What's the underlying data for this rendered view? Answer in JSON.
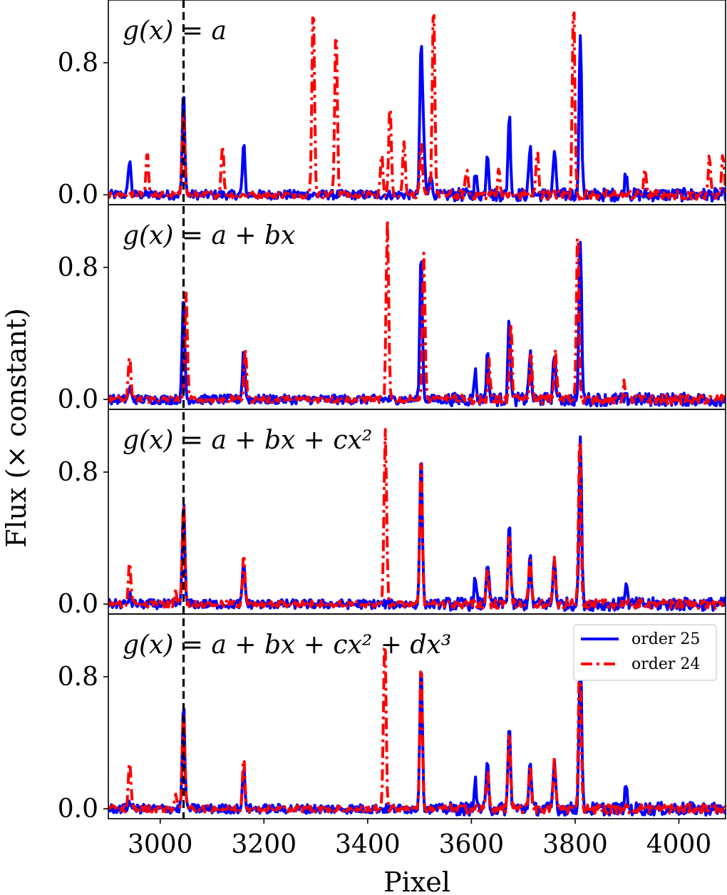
{
  "chart_data": {
    "type": "line",
    "xlabel": "Pixel",
    "ylabel": "Flux (× constant)",
    "xlim": [
      2900,
      4090
    ],
    "ylim": [
      -0.06,
      1.18
    ],
    "x_ticks": [
      "3000",
      "3200",
      "3400",
      "3600",
      "3800",
      "4000"
    ],
    "y_ticks": [
      "0.0",
      "0.8"
    ],
    "reference_line_x": 3045,
    "legend": {
      "placement": "top-right of bottom panel",
      "entries": [
        "order 25",
        "order 24"
      ]
    },
    "series_styles": {
      "order 25": {
        "color": "#0000ff",
        "style": "solid"
      },
      "order 24": {
        "color": "#ff0000",
        "style": "dash-dot"
      }
    },
    "panels": [
      {
        "formula": "g(x) = a",
        "series": [
          {
            "name": "order 25",
            "peaks": [
              [
                2941,
                0.22
              ],
              [
                3045,
                0.63
              ],
              [
                3161,
                0.3
              ],
              [
                3503,
                0.9
              ],
              [
                3508,
                0.3
              ],
              [
                3521,
                0.14
              ],
              [
                3608,
                0.12
              ],
              [
                3631,
                0.27
              ],
              [
                3673,
                0.49
              ],
              [
                3713,
                0.28
              ],
              [
                3760,
                0.27
              ],
              [
                3810,
                0.98
              ],
              [
                3898,
                0.14
              ]
            ]
          },
          {
            "name": "order 24",
            "peaks": [
              [
                2975,
                0.26
              ],
              [
                3045,
                0.55
              ],
              [
                3120,
                0.31
              ],
              [
                3295,
                1.18
              ],
              [
                3339,
                1.03
              ],
              [
                3427,
                0.24
              ],
              [
                3443,
                0.55
              ],
              [
                3470,
                0.33
              ],
              [
                3503,
                0.31
              ],
              [
                3527,
                1.18
              ],
              [
                3591,
                0.16
              ],
              [
                3653,
                0.15
              ],
              [
                3727,
                0.27
              ],
              [
                3797,
                1.18
              ],
              [
                3935,
                0.15
              ],
              [
                4059,
                0.23
              ],
              [
                4085,
                0.24
              ]
            ]
          }
        ]
      },
      {
        "formula": "g(x) = a + bx",
        "series": [
          {
            "name": "order 25",
            "peaks": [
              [
                2941,
                0.07
              ],
              [
                3045,
                0.63
              ],
              [
                3161,
                0.3
              ],
              [
                3503,
                0.9
              ],
              [
                3607,
                0.17
              ],
              [
                3631,
                0.27
              ],
              [
                3673,
                0.5
              ],
              [
                3713,
                0.28
              ],
              [
                3760,
                0.29
              ],
              [
                3810,
                0.98
              ]
            ]
          },
          {
            "name": "order 24",
            "peaks": [
              [
                2941,
                0.27
              ],
              [
                3050,
                0.63
              ],
              [
                3164,
                0.3
              ],
              [
                3438,
                1.07
              ],
              [
                3508,
                0.89
              ],
              [
                3634,
                0.22
              ],
              [
                3676,
                0.45
              ],
              [
                3715,
                0.27
              ],
              [
                3762,
                0.3
              ],
              [
                3805,
                1.07
              ],
              [
                3895,
                0.1
              ]
            ]
          }
        ]
      },
      {
        "formula": "g(x) = a + bx + cx²",
        "series": [
          {
            "name": "order 25",
            "peaks": [
              [
                2941,
                0.05
              ],
              [
                3045,
                0.63
              ],
              [
                3161,
                0.25
              ],
              [
                3503,
                0.9
              ],
              [
                3607,
                0.14
              ],
              [
                3631,
                0.27
              ],
              [
                3673,
                0.49
              ],
              [
                3713,
                0.28
              ],
              [
                3760,
                0.28
              ],
              [
                3810,
                1.02
              ],
              [
                3898,
                0.13
              ]
            ]
          },
          {
            "name": "order 24",
            "peaks": [
              [
                2941,
                0.27
              ],
              [
                3030,
                0.08
              ],
              [
                3045,
                0.62
              ],
              [
                3161,
                0.31
              ],
              [
                3434,
                1.07
              ],
              [
                3503,
                0.91
              ],
              [
                3631,
                0.22
              ],
              [
                3673,
                0.46
              ],
              [
                3713,
                0.28
              ],
              [
                3760,
                0.28
              ],
              [
                3809,
                1.06
              ]
            ]
          }
        ]
      },
      {
        "formula": "g(x) = a + bx + cx² + dx³",
        "series": [
          {
            "name": "order 25",
            "peaks": [
              [
                2941,
                0.05
              ],
              [
                3045,
                0.63
              ],
              [
                3161,
                0.24
              ],
              [
                3503,
                0.91
              ],
              [
                3607,
                0.17
              ],
              [
                3631,
                0.27
              ],
              [
                3673,
                0.5
              ],
              [
                3713,
                0.28
              ],
              [
                3760,
                0.29
              ],
              [
                3810,
                1.0
              ],
              [
                3898,
                0.13
              ]
            ]
          },
          {
            "name": "order 24",
            "peaks": [
              [
                2941,
                0.28
              ],
              [
                3030,
                0.08
              ],
              [
                3045,
                0.61
              ],
              [
                3161,
                0.32
              ],
              [
                3433,
                1.07
              ],
              [
                3503,
                0.89
              ],
              [
                3631,
                0.22
              ],
              [
                3673,
                0.48
              ],
              [
                3713,
                0.28
              ],
              [
                3760,
                0.3
              ],
              [
                3809,
                1.06
              ]
            ]
          }
        ]
      }
    ]
  }
}
